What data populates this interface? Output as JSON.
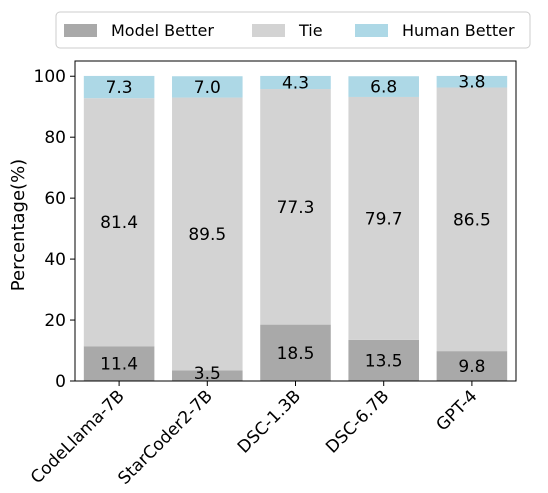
{
  "chart_data": {
    "type": "bar",
    "stacked": true,
    "categories": [
      "CodeLlama-7B",
      "StarCoder2-7B",
      "DSC-1.3B",
      "DSC-6.7B",
      "GPT-4"
    ],
    "series": [
      {
        "name": "Model Better",
        "values": [
          11.4,
          3.5,
          18.5,
          13.5,
          9.8
        ],
        "color": "#a9a9a9"
      },
      {
        "name": "Tie",
        "values": [
          81.4,
          89.5,
          77.3,
          79.7,
          86.5
        ],
        "color": "#d3d3d3"
      },
      {
        "name": "Human Better",
        "values": [
          7.3,
          7.0,
          4.3,
          6.8,
          3.8
        ],
        "color": "#add8e6"
      }
    ],
    "ylabel": "Percentage(%)",
    "xlabel": "",
    "ylim": [
      0,
      105
    ],
    "yticks": [
      0,
      20,
      40,
      60,
      80,
      100
    ],
    "legend_position": "top",
    "grid": false
  }
}
